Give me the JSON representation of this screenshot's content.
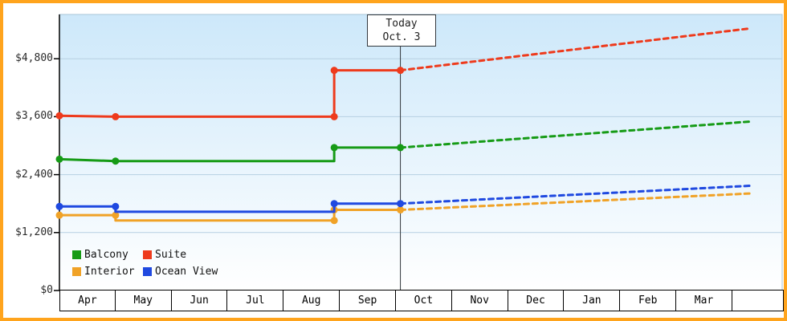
{
  "frame": {
    "border_color": "#ffa41d",
    "plot_gradient_top": "#cde8fa",
    "plot_gradient_bottom": "#ffffff"
  },
  "legend": {
    "items": [
      {
        "label": "Balcony",
        "color": "#169b16"
      },
      {
        "label": "Suite",
        "color": "#ee3a1c"
      },
      {
        "label": "Interior",
        "color": "#f0a227"
      },
      {
        "label": "Ocean View",
        "color": "#1f49e0"
      }
    ]
  },
  "chart_data": {
    "type": "line",
    "title": "",
    "today": {
      "line1": "Today",
      "line2": "Oct. 3",
      "month_position": 6.08
    },
    "x_axis": {
      "unit": "month",
      "labels": [
        "Apr",
        "May",
        "Jun",
        "Jul",
        "Aug",
        "Sep",
        "Oct",
        "Nov",
        "Dec",
        "Jan",
        "Feb",
        "Mar"
      ]
    },
    "y_axis": {
      "tick_labels": [
        "$4,800",
        "$3,600",
        "$2,400",
        "$1,200",
        "$0"
      ],
      "tick_values": [
        4800,
        3600,
        2400,
        1200,
        0
      ],
      "max_value": 5700,
      "currency": "USD"
    },
    "grid": true,
    "legend_position": "bottom-left",
    "series": [
      {
        "name": "Balcony",
        "color": "#169b16",
        "history": [
          {
            "m": 0,
            "price": 2720,
            "dot": true
          },
          {
            "m": 1,
            "price": 2680,
            "dot": true
          },
          {
            "m": 4.9,
            "price": 2680,
            "dot": false
          },
          {
            "m": 4.9,
            "price": 2960,
            "dot": true
          },
          {
            "m": 6.08,
            "price": 2960,
            "dot": true
          }
        ],
        "forecast": [
          {
            "m": 6.08,
            "price": 2960
          },
          {
            "m": 12.33,
            "price": 3500
          }
        ]
      },
      {
        "name": "Suite",
        "color": "#ee3a1c",
        "history": [
          {
            "m": 0,
            "price": 3620,
            "dot": true
          },
          {
            "m": 1,
            "price": 3600,
            "dot": true
          },
          {
            "m": 4.9,
            "price": 3600,
            "dot": true
          },
          {
            "m": 4.9,
            "price": 4560,
            "dot": true
          },
          {
            "m": 6.08,
            "price": 4560,
            "dot": true
          }
        ],
        "forecast": [
          {
            "m": 6.08,
            "price": 4560
          },
          {
            "m": 12.33,
            "price": 5430
          }
        ]
      },
      {
        "name": "Interior",
        "color": "#f0a227",
        "history": [
          {
            "m": 0,
            "price": 1560,
            "dot": true
          },
          {
            "m": 1,
            "price": 1560,
            "dot": true
          },
          {
            "m": 1,
            "price": 1450,
            "dot": false
          },
          {
            "m": 4.9,
            "price": 1450,
            "dot": true
          },
          {
            "m": 4.9,
            "price": 1670,
            "dot": true
          },
          {
            "m": 6.08,
            "price": 1670,
            "dot": true
          }
        ],
        "forecast": [
          {
            "m": 6.08,
            "price": 1670
          },
          {
            "m": 12.33,
            "price": 2010
          }
        ]
      },
      {
        "name": "Ocean View",
        "color": "#1f49e0",
        "history": [
          {
            "m": 0,
            "price": 1740,
            "dot": true
          },
          {
            "m": 1,
            "price": 1740,
            "dot": true
          },
          {
            "m": 1,
            "price": 1630,
            "dot": false
          },
          {
            "m": 4.9,
            "price": 1630,
            "dot": false
          },
          {
            "m": 4.9,
            "price": 1800,
            "dot": true
          },
          {
            "m": 6.08,
            "price": 1800,
            "dot": true
          }
        ],
        "forecast": [
          {
            "m": 6.08,
            "price": 1800
          },
          {
            "m": 12.33,
            "price": 2170
          }
        ]
      }
    ]
  }
}
